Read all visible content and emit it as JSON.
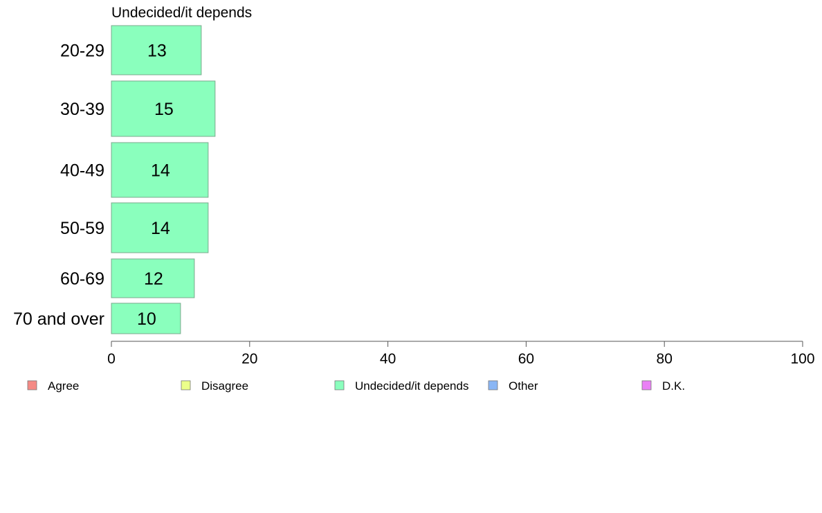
{
  "chart_data": {
    "type": "bar",
    "orientation": "horizontal",
    "title": "Undecided/it depends",
    "categories": [
      "20-29",
      "30-39",
      "40-49",
      "50-59",
      "60-69",
      "70 and over"
    ],
    "series": [
      {
        "name": "Undecided/it depends",
        "values": [
          13,
          15,
          14,
          14,
          12,
          10
        ]
      }
    ],
    "xlim": [
      0,
      100
    ],
    "xticks": [
      0,
      20,
      40,
      60,
      80,
      100
    ],
    "xlabel": "",
    "ylabel": "",
    "grid": false,
    "legend": {
      "placement": "bottom",
      "items": [
        {
          "label": "Agree",
          "color": "#f58a85"
        },
        {
          "label": "Disagree",
          "color": "#ecff8a"
        },
        {
          "label": "Undecided/it depends",
          "color": "#8affbd"
        },
        {
          "label": "Other",
          "color": "#8ab6f5"
        },
        {
          "label": "D.K.",
          "color": "#ea80f5"
        }
      ]
    },
    "bar_color": "#8affbd"
  }
}
